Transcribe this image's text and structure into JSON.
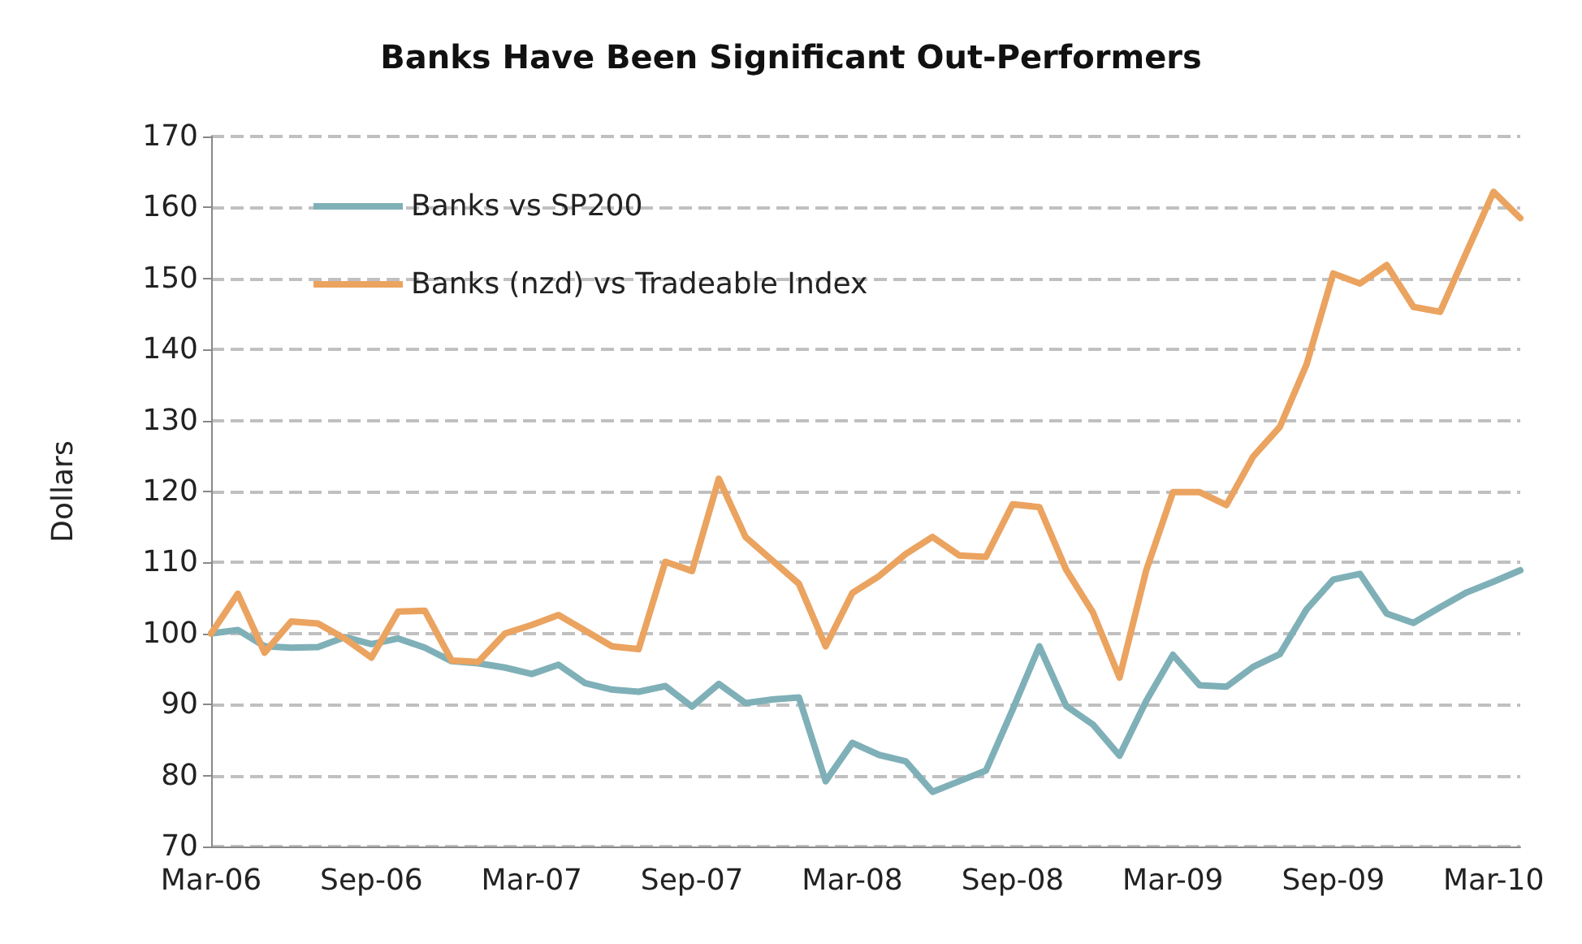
{
  "chart_data": {
    "type": "line",
    "title": "Banks Have Been Significant Out-Performers",
    "ylabel": "Dollars",
    "categories": [
      "Mar-06",
      null,
      null,
      null,
      null,
      null,
      "Sep-06",
      null,
      null,
      null,
      null,
      null,
      "Mar-07",
      null,
      null,
      null,
      null,
      null,
      "Sep-07",
      null,
      null,
      null,
      null,
      null,
      "Mar-08",
      null,
      null,
      null,
      null,
      null,
      "Sep-08",
      null,
      null,
      null,
      null,
      null,
      "Mar-09",
      null,
      null,
      null,
      null,
      null,
      "Sep-09",
      null,
      null,
      null,
      null,
      null,
      "Mar-10",
      null
    ],
    "series": [
      {
        "name": "Banks vs SP200",
        "color": "#7fb0b8",
        "values": [
          100,
          100.5,
          98.2,
          98,
          98.1,
          99.5,
          98.5,
          99.3,
          98,
          96.1,
          95.8,
          95.2,
          94.3,
          95.6,
          93,
          92.1,
          91.8,
          92.6,
          89.7,
          92.9,
          90.2,
          90.7,
          91,
          79.2,
          84.6,
          82.9,
          82,
          77.7,
          79.2,
          80.7,
          89.3,
          98.2,
          89.8,
          87.2,
          82.8,
          90.5,
          97,
          92.7,
          92.5,
          95.3,
          97.1,
          103.4,
          107.6,
          108.4,
          102.8,
          101.5,
          103.7,
          105.8,
          107.3,
          108.9
        ]
      },
      {
        "name": "Banks (nzd) vs Tradeable Index",
        "color": "#eba360",
        "values": [
          100,
          105.6,
          97.3,
          101.7,
          101.4,
          99.3,
          96.6,
          103.1,
          103.2,
          96.2,
          96,
          100,
          101.2,
          102.6,
          100.4,
          98.2,
          97.8,
          110.1,
          108.8,
          121.8,
          113.6,
          110.3,
          107,
          98.2,
          105.7,
          108.1,
          111.2,
          113.6,
          111,
          110.8,
          118.2,
          117.8,
          109,
          103,
          93.8,
          108.9,
          119.9,
          119.9,
          118.1,
          124.9,
          129.1,
          137.9,
          150.7,
          149.3,
          151.9,
          146,
          145.3,
          153.8,
          162.2,
          158.5
        ]
      }
    ],
    "ylim": [
      70,
      170
    ],
    "yticks": [
      70,
      80,
      90,
      100,
      110,
      120,
      130,
      140,
      150,
      160,
      170
    ],
    "grid": "y",
    "legend": "top left",
    "marker": "none",
    "line_style": "solid"
  }
}
